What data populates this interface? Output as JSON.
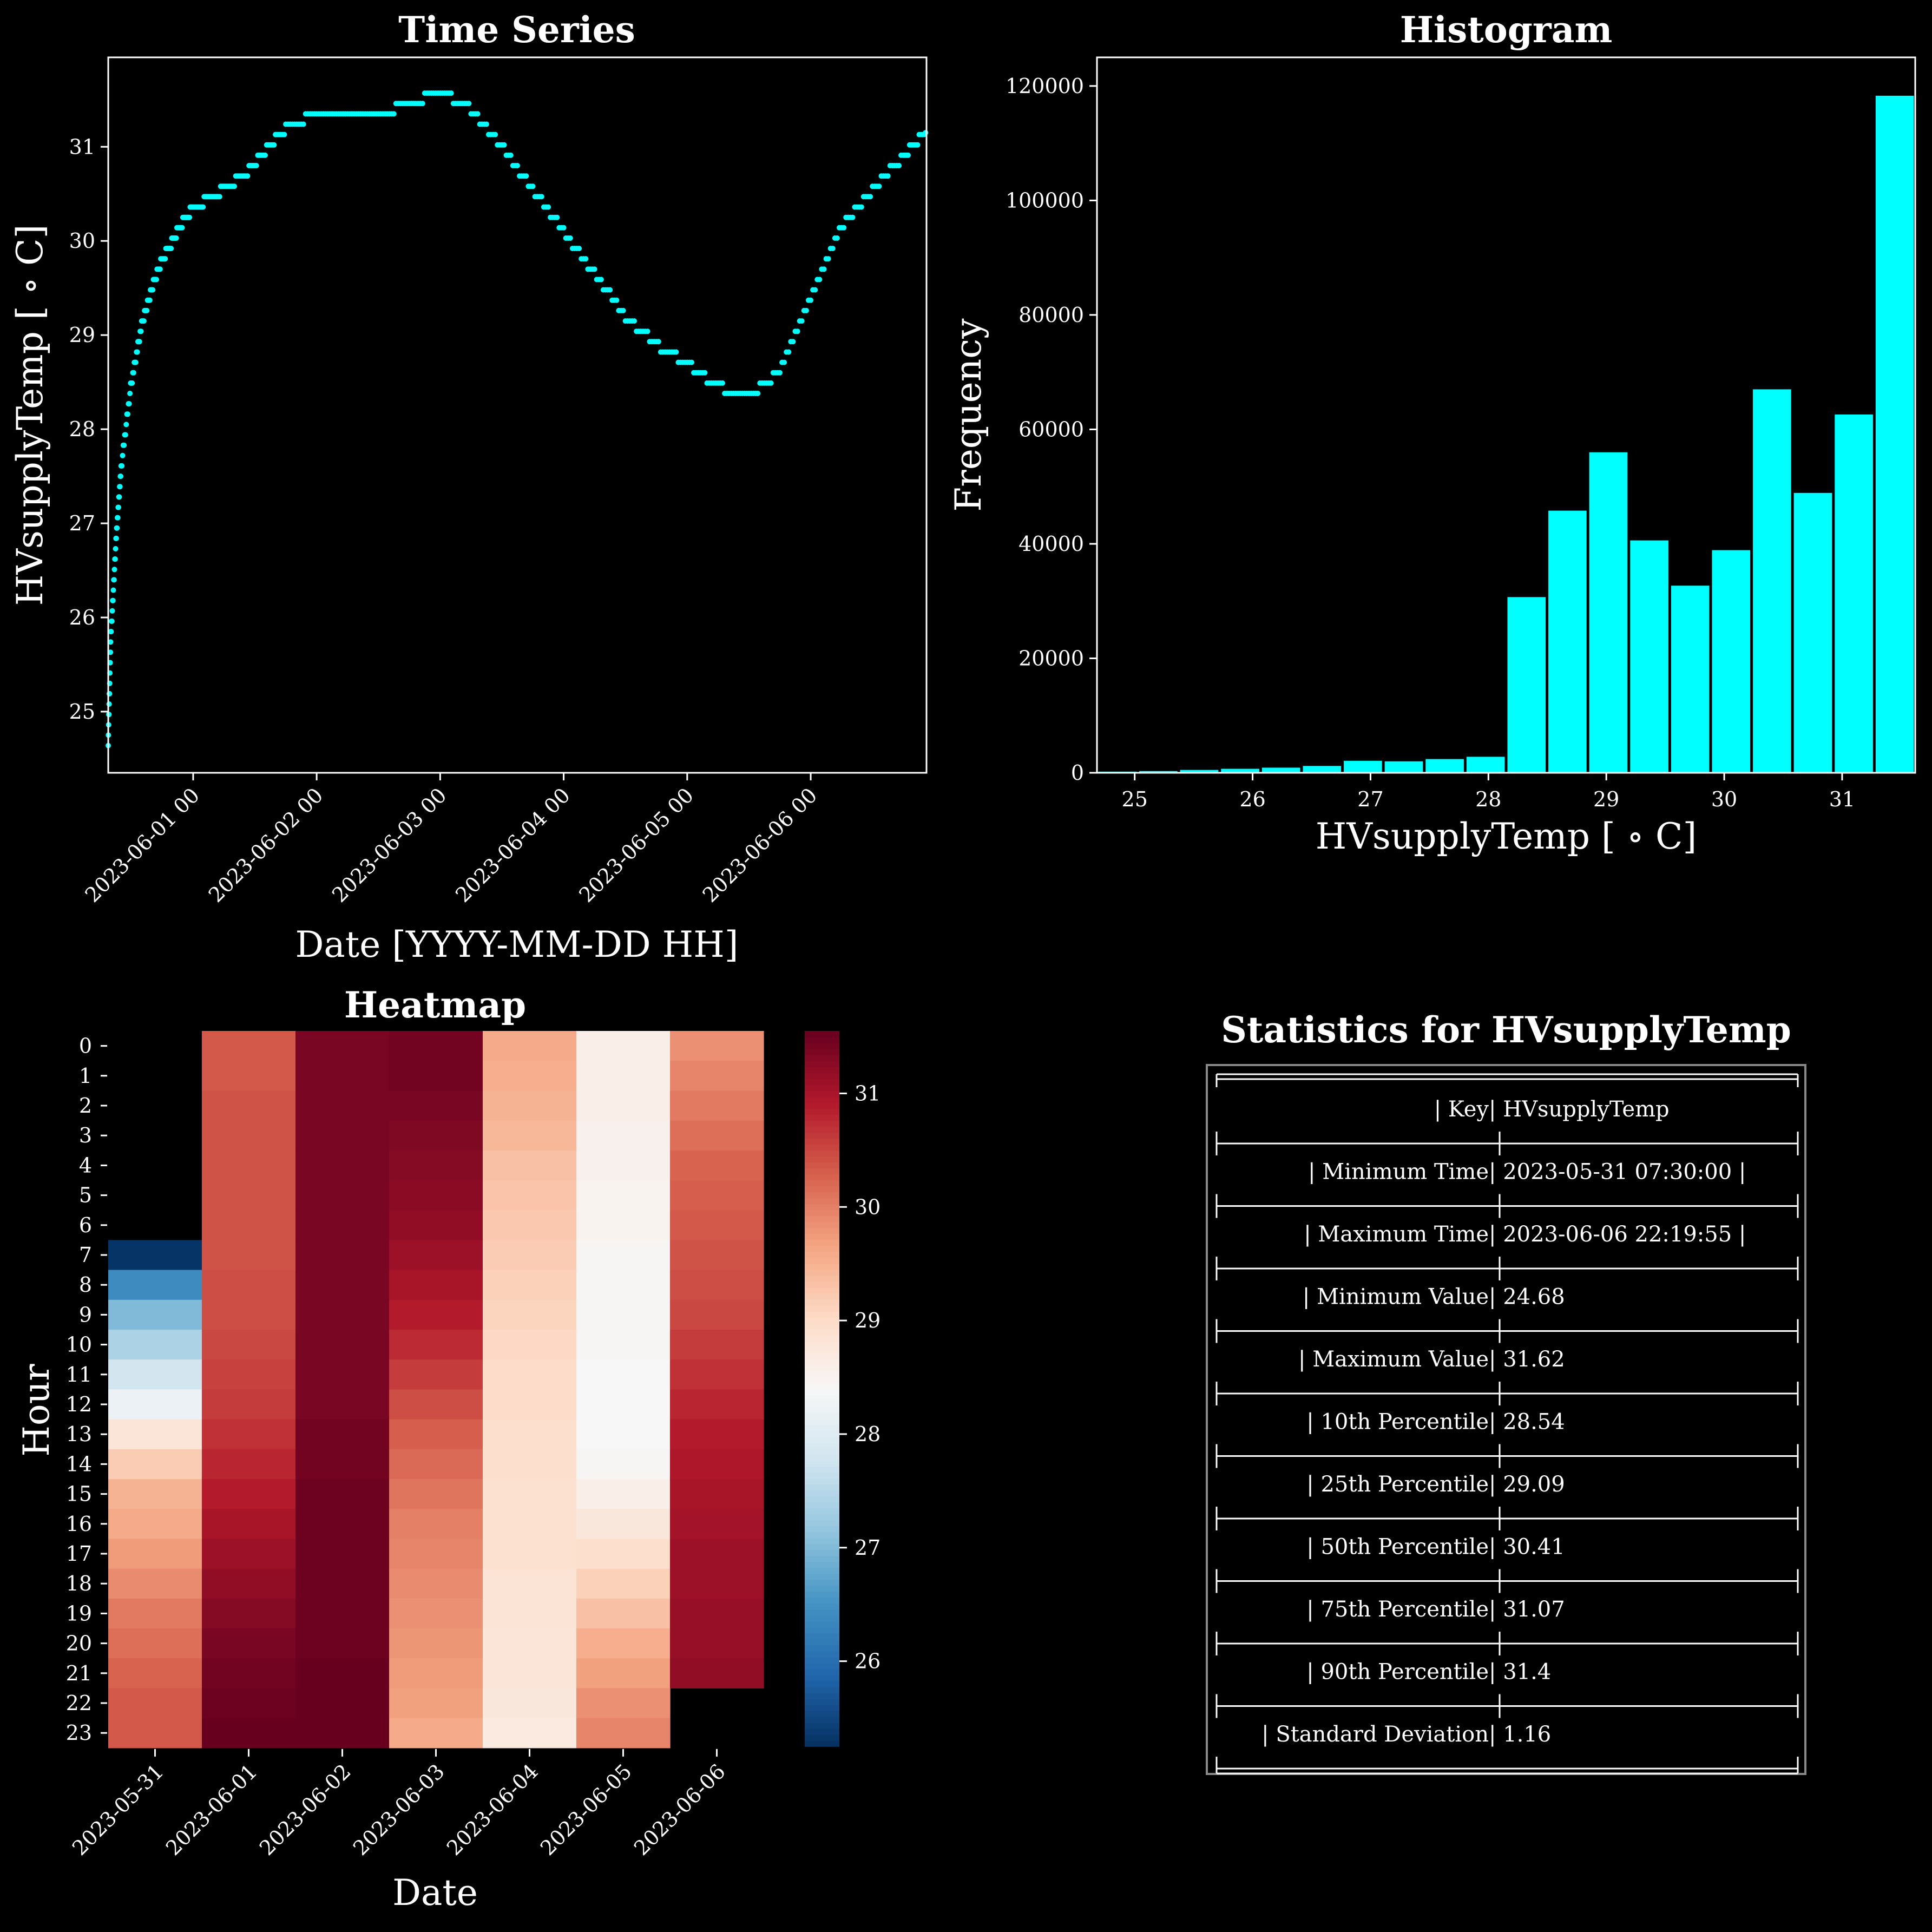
{
  "colors": {
    "background": "#000000",
    "series": "#00ffff",
    "axis": "#ffffff",
    "table_border": "#888888"
  },
  "time_series": {
    "title": "Time Series",
    "xlabel": "Date [YYYY-MM-DD HH]",
    "ylabel": "HVsupplyTemp [$^\\circ$C]",
    "ylabel_display": "HVsupplyTemp [ ∘ C]",
    "ylim": [
      24.35,
      31.95
    ],
    "yticks": [
      25,
      26,
      27,
      28,
      29,
      30,
      31
    ],
    "xlim": [
      "2023-05-31 07:30",
      "2023-06-06 22:30"
    ],
    "xtick_labels": [
      "2023-06-01 00",
      "2023-06-02 00",
      "2023-06-03 00",
      "2023-06-04 00",
      "2023-06-05 00",
      "2023-06-06 00"
    ]
  },
  "histogram": {
    "title": "Histogram",
    "xlabel": "HVsupplyTemp [ ∘ C]",
    "ylabel": "Frequency",
    "xlim": [
      24.68,
      31.62
    ],
    "ylim": [
      0,
      125000
    ],
    "xticks": [
      25,
      26,
      27,
      28,
      29,
      30,
      31
    ],
    "yticks": [
      0,
      20000,
      40000,
      60000,
      80000,
      100000,
      120000
    ]
  },
  "heatmap": {
    "title": "Heatmap",
    "xlabel": "Date",
    "ylabel": "Hour",
    "dates": [
      "2023-05-31",
      "2023-06-01",
      "2023-06-02",
      "2023-06-03",
      "2023-06-04",
      "2023-06-05",
      "2023-06-06"
    ],
    "hours": [
      "0",
      "1",
      "2",
      "3",
      "4",
      "5",
      "6",
      "7",
      "8",
      "9",
      "10",
      "11",
      "12",
      "13",
      "14",
      "15",
      "16",
      "17",
      "18",
      "19",
      "20",
      "21",
      "22",
      "23"
    ],
    "colorbar_range": [
      25.25,
      31.55
    ],
    "colorbar_ticks": [
      26,
      27,
      28,
      29,
      30,
      31
    ],
    "colormap": "RdBu_r"
  },
  "stats": {
    "title": "Statistics for HVsupplyTemp",
    "rows": [
      [
        "Key",
        "HVsupplyTemp"
      ],
      [
        "Minimum Time",
        "2023-05-31 07:30:00"
      ],
      [
        "Maximum Time",
        "2023-06-06 22:19:55"
      ],
      [
        "Minimum Value",
        "24.68"
      ],
      [
        "Maximum Value",
        "31.62"
      ],
      [
        "10th Percentile",
        "28.54"
      ],
      [
        "25th Percentile",
        "29.09"
      ],
      [
        "50th Percentile",
        "30.41"
      ],
      [
        "75th Percentile",
        "31.07"
      ],
      [
        "90th Percentile",
        "31.4"
      ],
      [
        "Standard Deviation",
        "1.16"
      ]
    ]
  },
  "chart_data": [
    {
      "type": "scatter",
      "title": "Time Series",
      "xlabel": "Date [YYYY-MM-DD HH]",
      "ylabel": "HVsupplyTemp [ ∘ C]",
      "ylim": [
        24.35,
        31.95
      ],
      "x": [
        "2023-05-31 07:30",
        "2023-05-31 08:00",
        "2023-05-31 09:00",
        "2023-05-31 10:00",
        "2023-05-31 12:00",
        "2023-05-31 14:00",
        "2023-05-31 16:00",
        "2023-05-31 18:00",
        "2023-05-31 20:00",
        "2023-05-31 22:00",
        "2023-06-01 00:00",
        "2023-06-01 03:00",
        "2023-06-01 06:00",
        "2023-06-01 10:00",
        "2023-06-01 14:00",
        "2023-06-01 18:00",
        "2023-06-02 00:00",
        "2023-06-02 06:00",
        "2023-06-02 12:00",
        "2023-06-02 18:00",
        "2023-06-03 00:00",
        "2023-06-03 06:00",
        "2023-06-03 12:00",
        "2023-06-03 18:00",
        "2023-06-04 00:00",
        "2023-06-04 06:00",
        "2023-06-04 12:00",
        "2023-06-04 18:00",
        "2023-06-05 00:00",
        "2023-06-05 06:00",
        "2023-06-05 12:00",
        "2023-06-05 18:00",
        "2023-06-06 00:00",
        "2023-06-06 06:00",
        "2023-06-06 12:00",
        "2023-06-06 18:00",
        "2023-06-06 22:19"
      ],
      "y": [
        24.68,
        25.8,
        26.8,
        27.6,
        28.5,
        29.1,
        29.5,
        29.8,
        30.0,
        30.2,
        30.35,
        30.45,
        30.55,
        30.7,
        30.95,
        31.2,
        31.35,
        31.4,
        31.35,
        31.45,
        31.6,
        31.4,
        31.0,
        30.55,
        30.1,
        29.65,
        29.2,
        28.9,
        28.7,
        28.45,
        28.35,
        28.6,
        29.4,
        30.15,
        30.55,
        30.9,
        31.15
      ]
    },
    {
      "type": "bar",
      "title": "Histogram",
      "xlabel": "HVsupplyTemp [ ∘ C]",
      "ylabel": "Frequency",
      "ylim": [
        0,
        125000
      ],
      "bin_edges": [
        24.68,
        25.027,
        25.374,
        25.721,
        26.068,
        26.415,
        26.762,
        27.109,
        27.456,
        27.803,
        28.15,
        28.497,
        28.844,
        29.191,
        29.538,
        29.885,
        30.232,
        30.579,
        30.926,
        31.273,
        31.62
      ],
      "values": [
        200,
        300,
        500,
        700,
        900,
        1200,
        2100,
        2000,
        2400,
        2800,
        30700,
        45800,
        56000,
        40600,
        32700,
        38900,
        67000,
        48900,
        62600,
        118300
      ]
    },
    {
      "type": "heatmap",
      "title": "Heatmap",
      "xlabel": "Date",
      "ylabel": "Hour",
      "x": [
        "2023-05-31",
        "2023-06-01",
        "2023-06-02",
        "2023-06-03",
        "2023-06-04",
        "2023-06-05",
        "2023-06-06"
      ],
      "y": [
        "0",
        "1",
        "2",
        "3",
        "4",
        "5",
        "6",
        "7",
        "8",
        "9",
        "10",
        "11",
        "12",
        "13",
        "14",
        "15",
        "16",
        "17",
        "18",
        "19",
        "20",
        "21",
        "22",
        "23"
      ],
      "values": [
        [
          null,
          30.35,
          31.4,
          31.45,
          29.6,
          28.6,
          29.85
        ],
        [
          null,
          30.35,
          31.4,
          31.45,
          29.55,
          28.6,
          29.95
        ],
        [
          null,
          30.4,
          31.4,
          31.4,
          29.5,
          28.6,
          30.05
        ],
        [
          null,
          30.4,
          31.4,
          31.35,
          29.45,
          28.55,
          30.15
        ],
        [
          null,
          30.4,
          31.4,
          31.3,
          29.35,
          28.55,
          30.25
        ],
        [
          null,
          30.4,
          31.4,
          31.25,
          29.3,
          28.5,
          30.3
        ],
        [
          null,
          30.4,
          31.4,
          31.2,
          29.25,
          28.5,
          30.35
        ],
        [
          25.3,
          30.4,
          31.4,
          31.1,
          29.2,
          28.45,
          30.4
        ],
        [
          26.4,
          30.45,
          31.4,
          31.0,
          29.15,
          28.45,
          30.45
        ],
        [
          27.0,
          30.45,
          31.4,
          30.9,
          29.1,
          28.45,
          30.5
        ],
        [
          27.4,
          30.5,
          31.4,
          30.75,
          29.05,
          28.45,
          30.6
        ],
        [
          27.8,
          30.55,
          31.4,
          30.6,
          29.0,
          28.4,
          30.7
        ],
        [
          28.2,
          30.6,
          31.4,
          30.45,
          29.0,
          28.4,
          30.8
        ],
        [
          28.8,
          30.7,
          31.45,
          30.3,
          28.95,
          28.4,
          30.9
        ],
        [
          29.2,
          30.8,
          31.45,
          30.2,
          28.95,
          28.45,
          30.95
        ],
        [
          29.5,
          30.9,
          31.5,
          30.1,
          28.9,
          28.6,
          31.0
        ],
        [
          29.6,
          31.0,
          31.5,
          30.0,
          28.9,
          28.75,
          31.05
        ],
        [
          29.75,
          31.1,
          31.5,
          29.95,
          28.9,
          28.95,
          31.1
        ],
        [
          29.9,
          31.2,
          31.5,
          29.9,
          28.85,
          29.15,
          31.1
        ],
        [
          30.05,
          31.3,
          31.5,
          29.85,
          28.85,
          29.35,
          31.15
        ],
        [
          30.15,
          31.4,
          31.5,
          29.8,
          28.8,
          29.55,
          31.15
        ],
        [
          30.25,
          31.45,
          31.55,
          29.75,
          28.8,
          29.7,
          31.2
        ],
        [
          30.35,
          31.5,
          31.55,
          29.7,
          28.75,
          29.85,
          null
        ],
        [
          30.35,
          31.55,
          31.55,
          29.6,
          28.7,
          29.95,
          null
        ]
      ],
      "colorbar_range": [
        25.25,
        31.55
      ]
    }
  ]
}
